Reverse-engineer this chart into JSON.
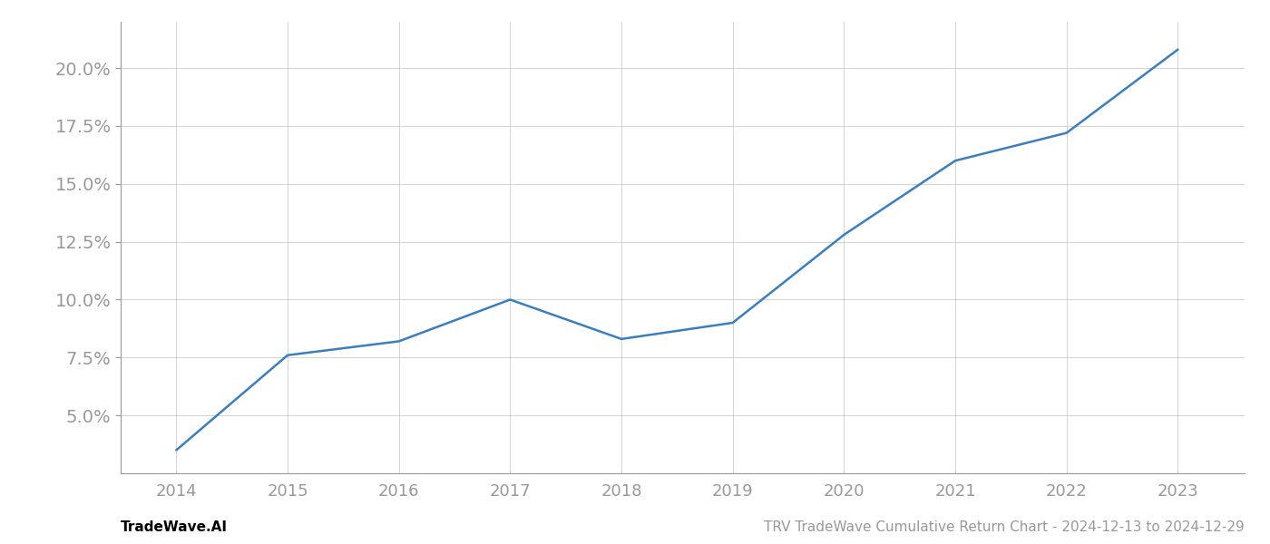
{
  "x_years": [
    2014,
    2015,
    2016,
    2017,
    2018,
    2019,
    2020,
    2021,
    2022,
    2023
  ],
  "y_values": [
    3.5,
    7.6,
    8.2,
    10.0,
    8.3,
    9.0,
    12.8,
    16.0,
    17.2,
    20.8
  ],
  "line_color": "#3a7ebf",
  "line_width": 1.8,
  "background_color": "#ffffff",
  "grid_color": "#cccccc",
  "title": "TRV TradeWave Cumulative Return Chart - 2024-12-13 to 2024-12-29",
  "footer_left": "TradeWave.AI",
  "xlim": [
    2013.5,
    2023.6
  ],
  "ylim": [
    2.5,
    22.0
  ],
  "yticks": [
    5.0,
    7.5,
    10.0,
    12.5,
    15.0,
    17.5,
    20.0
  ],
  "xticks": [
    2014,
    2015,
    2016,
    2017,
    2018,
    2019,
    2020,
    2021,
    2022,
    2023
  ],
  "tick_label_color": "#999999",
  "title_color": "#999999",
  "footer_left_color": "#000000",
  "title_fontsize": 11,
  "footer_fontsize": 11,
  "tick_fontsize": 13,
  "ytick_fontsize": 14
}
